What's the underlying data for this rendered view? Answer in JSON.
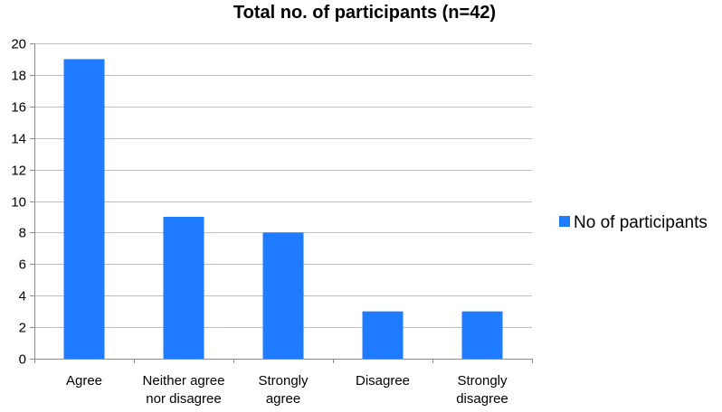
{
  "chart_data": {
    "type": "bar",
    "title": "Total no. of participants (n=42)",
    "xlabel": "",
    "ylabel": "",
    "categories": [
      [
        "Agree"
      ],
      [
        "Neither agree",
        "nor disagree"
      ],
      [
        "Strongly",
        "agree"
      ],
      [
        "Disagree"
      ],
      [
        "Strongly",
        "disagree"
      ]
    ],
    "series": [
      {
        "name": "No of participants",
        "values": [
          19,
          9,
          8,
          3,
          3
        ],
        "color": "#1f7bff"
      }
    ],
    "ylim": [
      0,
      20
    ],
    "yticks": [
      0,
      2,
      4,
      6,
      8,
      10,
      12,
      14,
      16,
      18,
      20
    ],
    "grid": true,
    "legend": "right"
  }
}
